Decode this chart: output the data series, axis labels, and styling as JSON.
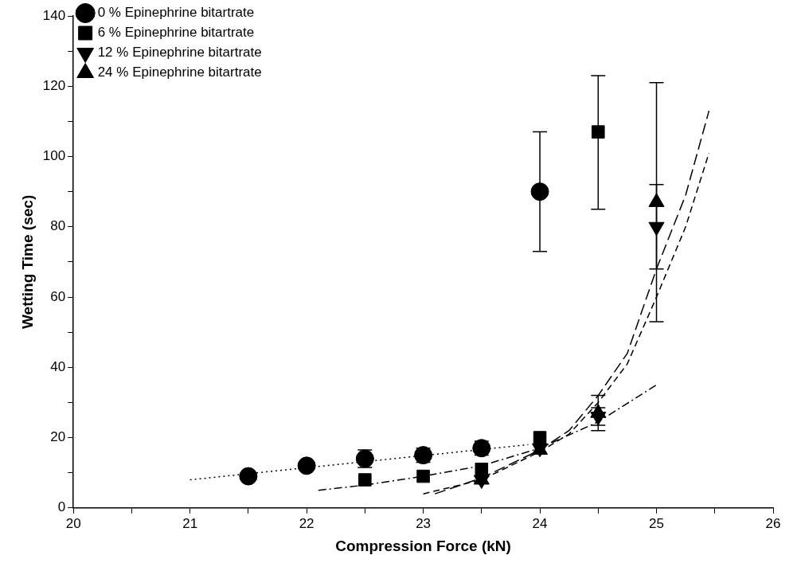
{
  "chart_data": {
    "type": "scatter",
    "xlabel": "Compression Force (kN)",
    "ylabel": "Wetting Time (sec)",
    "xlim": [
      20,
      26
    ],
    "xticks": [
      20,
      {
        "value": 20.5,
        "label": null
      },
      21,
      {
        "value": 21.5,
        "label": null
      },
      22,
      {
        "value": 22.5,
        "label": null
      },
      23,
      {
        "value": 23.5,
        "label": null
      },
      24,
      {
        "value": 24.5,
        "label": null
      },
      25,
      {
        "value": 25.5,
        "label": null
      },
      26
    ],
    "ylim": [
      0,
      140
    ],
    "yticks": [
      0,
      {
        "value": 10,
        "label": null
      },
      20,
      {
        "value": 30,
        "label": null
      },
      40,
      {
        "value": 50,
        "label": null
      },
      60,
      {
        "value": 70,
        "label": null
      },
      80,
      {
        "value": 90,
        "label": null
      },
      100,
      {
        "value": 110,
        "label": null
      },
      120,
      {
        "value": 130,
        "label": null
      },
      140
    ],
    "grid": false,
    "legend": "top left",
    "series": [
      {
        "name": "0 % Epinephrine bitartrate",
        "color": "#000000",
        "marker": "circle",
        "line_style": "dotted",
        "x": [
          21.5,
          22,
          22.5,
          23,
          23.5,
          24
        ],
        "values": [
          9,
          12,
          14,
          15,
          17,
          90
        ],
        "errors": [
          null,
          null,
          2.5,
          2,
          2,
          17
        ]
      },
      {
        "name": "6 % Epinephrine bitartrate",
        "color": "#000000",
        "marker": "square",
        "line_style": "dashdot",
        "x": [
          22.5,
          23,
          23.5,
          24,
          24.5
        ],
        "values": [
          8,
          9,
          11,
          20,
          107
        ],
        "errors": [
          null,
          null,
          null,
          null,
          [
            85,
            123
          ]
        ]
      },
      {
        "name": "12 % Epinephrine bitartrate",
        "color": "#000000",
        "marker": "triangle-down",
        "line_style": "dashed",
        "x": [
          23.5,
          24,
          24.5,
          25
        ],
        "values": [
          8,
          17,
          26,
          80
        ],
        "errors": [
          null,
          null,
          2.5,
          12
        ]
      },
      {
        "name": "24 % Epinephrine bitartrate",
        "color": "#000000",
        "marker": "triangle",
        "line_style": "longdash",
        "x": [
          23.5,
          24,
          24.5,
          25
        ],
        "values": [
          8,
          16.5,
          27,
          87
        ],
        "errors": [
          null,
          null,
          5,
          34
        ]
      },
      {
        "type": "line",
        "color": "#000000",
        "line_style": "dotted",
        "x": [
          21,
          23.9
        ],
        "values": [
          8,
          18
        ]
      },
      {
        "type": "line",
        "color": "#000000",
        "line_style": "dashdot",
        "x": [
          22.1,
          22.5,
          23,
          23.5,
          24,
          24.5,
          25
        ],
        "values": [
          5,
          6.5,
          9,
          12,
          17,
          24.5,
          35
        ]
      },
      {
        "type": "line",
        "color": "#000000",
        "line_style": "dashed",
        "x": [
          23,
          23.5,
          24,
          24.25,
          24.5,
          24.75,
          25,
          25.25,
          25.45
        ],
        "values": [
          4,
          8,
          16,
          21,
          30,
          41,
          60,
          80,
          101
        ]
      },
      {
        "type": "line",
        "color": "#000000",
        "line_style": "longdash",
        "x": [
          23.1,
          23.5,
          24,
          24.25,
          24.5,
          24.75,
          25,
          25.25,
          25.45
        ],
        "values": [
          4,
          8.5,
          16.5,
          22,
          32,
          44,
          68,
          89,
          113
        ]
      }
    ]
  }
}
